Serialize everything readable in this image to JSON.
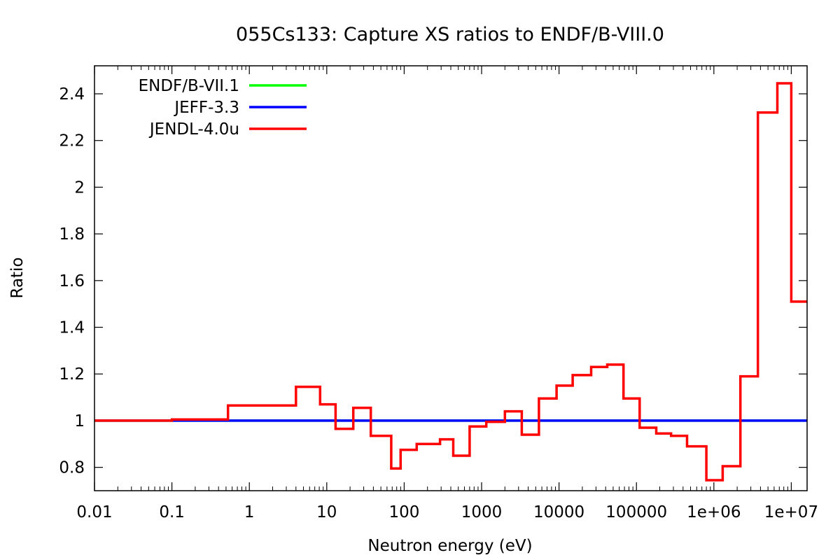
{
  "chart_data": {
    "type": "line",
    "title": "055Cs133: Capture XS ratios to ENDF/B-VIII.0",
    "xlabel": "Neutron energy (eV)",
    "ylabel": "Ratio",
    "xscale": "log",
    "xlim": [
      0.01,
      16000000
    ],
    "ylim": [
      0.7,
      2.52
    ],
    "xticks": [
      {
        "value": 0.01,
        "label": "0.01"
      },
      {
        "value": 0.1,
        "label": "0.1"
      },
      {
        "value": 1,
        "label": "1"
      },
      {
        "value": 10,
        "label": "10"
      },
      {
        "value": 100,
        "label": "100"
      },
      {
        "value": 1000,
        "label": "1000"
      },
      {
        "value": 10000,
        "label": "10000"
      },
      {
        "value": 100000,
        "label": "100000"
      },
      {
        "value": 1000000,
        "label": "1e+06"
      },
      {
        "value": 10000000,
        "label": "1e+07"
      }
    ],
    "yticks": [
      {
        "value": 0.8,
        "label": "0.8"
      },
      {
        "value": 1.0,
        "label": "1"
      },
      {
        "value": 1.2,
        "label": "1.2"
      },
      {
        "value": 1.4,
        "label": "1.4"
      },
      {
        "value": 1.6,
        "label": "1.6"
      },
      {
        "value": 1.8,
        "label": "1.8"
      },
      {
        "value": 2.0,
        "label": "2"
      },
      {
        "value": 2.2,
        "label": "2.2"
      },
      {
        "value": 2.4,
        "label": "2.4"
      }
    ],
    "grid": false,
    "legend_position": "top-left",
    "series": [
      {
        "name": "ENDF/B-VII.1",
        "color": "#00ff00",
        "style": "step",
        "x": [
          0.01,
          16000000
        ],
        "y": [
          1.0,
          1.0
        ]
      },
      {
        "name": "JEFF-3.3",
        "color": "#0000ff",
        "style": "step",
        "x": [
          0.01,
          16000000
        ],
        "y": [
          1.0,
          1.0
        ]
      },
      {
        "name": "JENDL-4.0u",
        "color": "#ff0000",
        "style": "step",
        "x": [
          0.01,
          0.1,
          0.53,
          4.0,
          8.2,
          13,
          22,
          37,
          68,
          90,
          145,
          290,
          430,
          700,
          1150,
          2000,
          3300,
          5500,
          9300,
          15000,
          26000,
          42000,
          68000,
          110000,
          180000,
          280000,
          450000,
          800000,
          1300000,
          2200000,
          3700000,
          6600000,
          10000000,
          16000000
        ],
        "y": [
          1.0,
          1.005,
          1.065,
          1.145,
          1.07,
          0.965,
          1.055,
          0.935,
          0.795,
          0.875,
          0.9,
          0.92,
          0.85,
          0.975,
          0.995,
          1.04,
          0.94,
          1.095,
          1.15,
          1.195,
          1.23,
          1.24,
          1.095,
          0.97,
          0.945,
          0.935,
          0.89,
          0.745,
          0.805,
          1.19,
          2.32,
          2.445,
          1.51,
          1.51
        ]
      }
    ]
  }
}
